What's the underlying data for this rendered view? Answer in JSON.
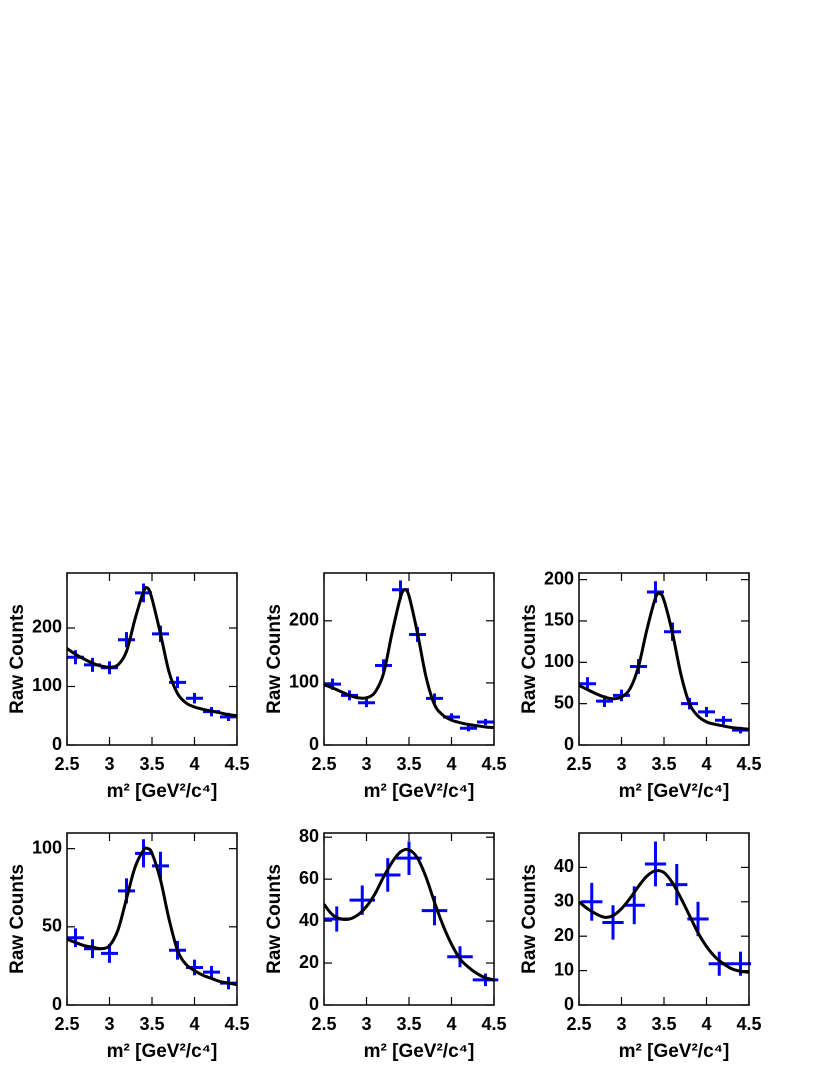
{
  "chart_data": [
    {
      "type": "errorbar",
      "xlabel": "m² [GeV²/c⁴]",
      "ylabel": "Raw Counts",
      "xlim": [
        2.5,
        4.5
      ],
      "xticks": [
        2.5,
        3,
        3.5,
        4,
        4.5
      ],
      "ylim": [
        0,
        294
      ],
      "yticks": [
        0,
        100,
        200
      ],
      "points": {
        "color": "#0000ff",
        "x": [
          2.6,
          2.8,
          3.0,
          3.2,
          3.4,
          3.6,
          3.8,
          4.0,
          4.2,
          4.4
        ],
        "values": [
          150,
          137,
          132,
          180,
          260,
          190,
          107,
          80,
          57,
          48
        ],
        "xerr": [
          0.1,
          0.1,
          0.1,
          0.1,
          0.1,
          0.1,
          0.1,
          0.1,
          0.1,
          0.1
        ],
        "yerr": [
          12,
          12,
          11,
          13,
          16,
          14,
          10,
          9,
          8,
          7
        ]
      },
      "fit": {
        "color": "#000000",
        "x": [
          2.5,
          2.6,
          2.7,
          2.8,
          2.9,
          3.0,
          3.1,
          3.2,
          3.3,
          3.4,
          3.45,
          3.5,
          3.6,
          3.7,
          3.8,
          3.9,
          4.0,
          4.1,
          4.2,
          4.3,
          4.4,
          4.5
        ],
        "values": [
          165,
          155,
          147,
          140,
          135,
          133,
          137,
          160,
          215,
          262,
          268,
          250,
          190,
          125,
          88,
          72,
          65,
          61,
          58,
          55,
          52,
          50
        ]
      }
    },
    {
      "type": "errorbar",
      "xlabel": "m² [GeV²/c⁴]",
      "ylabel": "Raw Counts",
      "xlim": [
        2.5,
        4.5
      ],
      "xticks": [
        2.5,
        3,
        3.5,
        4,
        4.5
      ],
      "ylim": [
        0,
        277
      ],
      "yticks": [
        0,
        100,
        200
      ],
      "points": {
        "color": "#0000ff",
        "x": [
          2.6,
          2.8,
          3.0,
          3.2,
          3.4,
          3.6,
          3.8,
          4.0,
          4.2,
          4.4
        ],
        "values": [
          98,
          80,
          68,
          128,
          250,
          178,
          75,
          45,
          27,
          37
        ],
        "xerr": [
          0.1,
          0.1,
          0.1,
          0.1,
          0.1,
          0.1,
          0.1,
          0.1,
          0.1,
          0.1
        ],
        "yerr": [
          9,
          8,
          7,
          10,
          15,
          12,
          8,
          6,
          5,
          5
        ]
      },
      "fit": {
        "color": "#000000",
        "x": [
          2.5,
          2.6,
          2.7,
          2.8,
          2.9,
          3.0,
          3.1,
          3.2,
          3.3,
          3.4,
          3.45,
          3.5,
          3.6,
          3.7,
          3.8,
          3.9,
          4.0,
          4.1,
          4.2,
          4.3,
          4.4,
          4.5
        ],
        "values": [
          97,
          92,
          86,
          80,
          76,
          76,
          85,
          115,
          180,
          238,
          250,
          240,
          180,
          110,
          65,
          48,
          40,
          36,
          33,
          31,
          29,
          28
        ]
      }
    },
    {
      "type": "errorbar",
      "xlabel": "m² [GeV²/c⁴]",
      "ylabel": "Raw Counts",
      "xlim": [
        2.5,
        4.5
      ],
      "xticks": [
        2.5,
        3,
        3.5,
        4,
        4.5
      ],
      "ylim": [
        0,
        208
      ],
      "yticks": [
        0,
        50,
        100,
        150,
        200
      ],
      "points": {
        "color": "#0000ff",
        "x": [
          2.6,
          2.8,
          3.0,
          3.2,
          3.4,
          3.6,
          3.8,
          4.0,
          4.2,
          4.4
        ],
        "values": [
          74,
          53,
          60,
          95,
          185,
          137,
          50,
          40,
          30,
          18
        ],
        "xerr": [
          0.1,
          0.1,
          0.1,
          0.1,
          0.1,
          0.1,
          0.1,
          0.1,
          0.1,
          0.1
        ],
        "yerr": [
          8,
          7,
          7,
          9,
          13,
          11,
          7,
          6,
          5,
          4
        ]
      },
      "fit": {
        "color": "#000000",
        "x": [
          2.5,
          2.6,
          2.7,
          2.8,
          2.9,
          3.0,
          3.1,
          3.2,
          3.3,
          3.4,
          3.45,
          3.5,
          3.6,
          3.7,
          3.8,
          3.9,
          4.0,
          4.1,
          4.2,
          4.3,
          4.4,
          4.5
        ],
        "values": [
          72,
          67,
          62,
          58,
          56,
          58,
          68,
          95,
          140,
          178,
          183,
          175,
          135,
          85,
          50,
          35,
          28,
          25,
          23,
          21,
          20,
          19
        ]
      }
    },
    {
      "type": "errorbar",
      "xlabel": "m² [GeV²/c⁴]",
      "ylabel": "Raw Counts",
      "xlim": [
        2.5,
        4.5
      ],
      "xticks": [
        2.5,
        3,
        3.5,
        4,
        4.5
      ],
      "ylim": [
        0,
        110
      ],
      "yticks": [
        0,
        50,
        100
      ],
      "points": {
        "color": "#0000ff",
        "x": [
          2.6,
          2.8,
          3.0,
          3.2,
          3.4,
          3.6,
          3.8,
          4.0,
          4.2,
          4.4
        ],
        "values": [
          43,
          36,
          33,
          73,
          97,
          89,
          35,
          24,
          21,
          14
        ],
        "xerr": [
          0.1,
          0.1,
          0.1,
          0.1,
          0.1,
          0.1,
          0.1,
          0.1,
          0.1,
          0.1
        ],
        "yerr": [
          6,
          6,
          6,
          8,
          9,
          9,
          6,
          5,
          4,
          4
        ]
      },
      "fit": {
        "color": "#000000",
        "x": [
          2.5,
          2.6,
          2.7,
          2.8,
          2.9,
          3.0,
          3.1,
          3.2,
          3.3,
          3.4,
          3.45,
          3.5,
          3.6,
          3.7,
          3.8,
          3.9,
          4.0,
          4.1,
          4.2,
          4.3,
          4.4,
          4.5
        ],
        "values": [
          42,
          40,
          38,
          37,
          36,
          38,
          48,
          68,
          88,
          99,
          100,
          97,
          80,
          55,
          35,
          26,
          22,
          19,
          17,
          15,
          14,
          13
        ]
      }
    },
    {
      "type": "errorbar",
      "xlabel": "m² [GeV²/c⁴]",
      "ylabel": "Raw Counts",
      "xlim": [
        2.5,
        4.5
      ],
      "xticks": [
        2.5,
        3,
        3.5,
        4,
        4.5
      ],
      "ylim": [
        0,
        82
      ],
      "yticks": [
        0,
        20,
        40,
        60,
        80
      ],
      "points": {
        "color": "#0000ff",
        "x": [
          2.65,
          2.95,
          3.25,
          3.5,
          3.8,
          4.1,
          4.4
        ],
        "values": [
          41,
          50,
          62,
          70,
          45,
          23,
          12
        ],
        "xerr": [
          0.15,
          0.15,
          0.15,
          0.15,
          0.15,
          0.15,
          0.15
        ],
        "yerr": [
          6,
          7,
          8,
          8,
          7,
          5,
          3
        ]
      },
      "fit": {
        "color": "#000000",
        "x": [
          2.5,
          2.6,
          2.7,
          2.8,
          2.9,
          3.0,
          3.1,
          3.2,
          3.3,
          3.4,
          3.5,
          3.6,
          3.7,
          3.8,
          3.9,
          4.0,
          4.1,
          4.2,
          4.3,
          4.4,
          4.5
        ],
        "values": [
          48,
          43,
          41,
          41,
          43,
          47,
          53,
          61,
          68,
          73,
          74,
          70,
          61,
          49,
          38,
          29,
          22,
          18,
          15,
          13,
          12
        ]
      }
    },
    {
      "type": "errorbar",
      "xlabel": "m² [GeV²/c⁴]",
      "ylabel": "Raw Counts",
      "xlim": [
        2.5,
        4.5
      ],
      "xticks": [
        2.5,
        3,
        3.5,
        4,
        4.5
      ],
      "ylim": [
        0,
        50
      ],
      "yticks": [
        0,
        10,
        20,
        30,
        40
      ],
      "points": {
        "color": "#0000ff",
        "x": [
          2.65,
          2.9,
          3.15,
          3.4,
          3.65,
          3.9,
          4.15,
          4.4
        ],
        "values": [
          30,
          24,
          29,
          41,
          35,
          25,
          12,
          12
        ],
        "xerr": [
          0.125,
          0.125,
          0.125,
          0.125,
          0.125,
          0.125,
          0.125,
          0.125
        ],
        "yerr": [
          5.5,
          5,
          5.5,
          6.5,
          6,
          5,
          3.5,
          3.5
        ]
      },
      "fit": {
        "color": "#000000",
        "x": [
          2.5,
          2.6,
          2.7,
          2.8,
          2.9,
          3.0,
          3.1,
          3.2,
          3.3,
          3.4,
          3.5,
          3.6,
          3.7,
          3.8,
          3.9,
          4.0,
          4.1,
          4.2,
          4.3,
          4.4,
          4.5
        ],
        "values": [
          30,
          28,
          26.5,
          25.5,
          26,
          28,
          31,
          34.5,
          37.5,
          39,
          38.5,
          35.5,
          31,
          26,
          21,
          17,
          14,
          12,
          10.5,
          9.8,
          9.5
        ]
      }
    }
  ]
}
